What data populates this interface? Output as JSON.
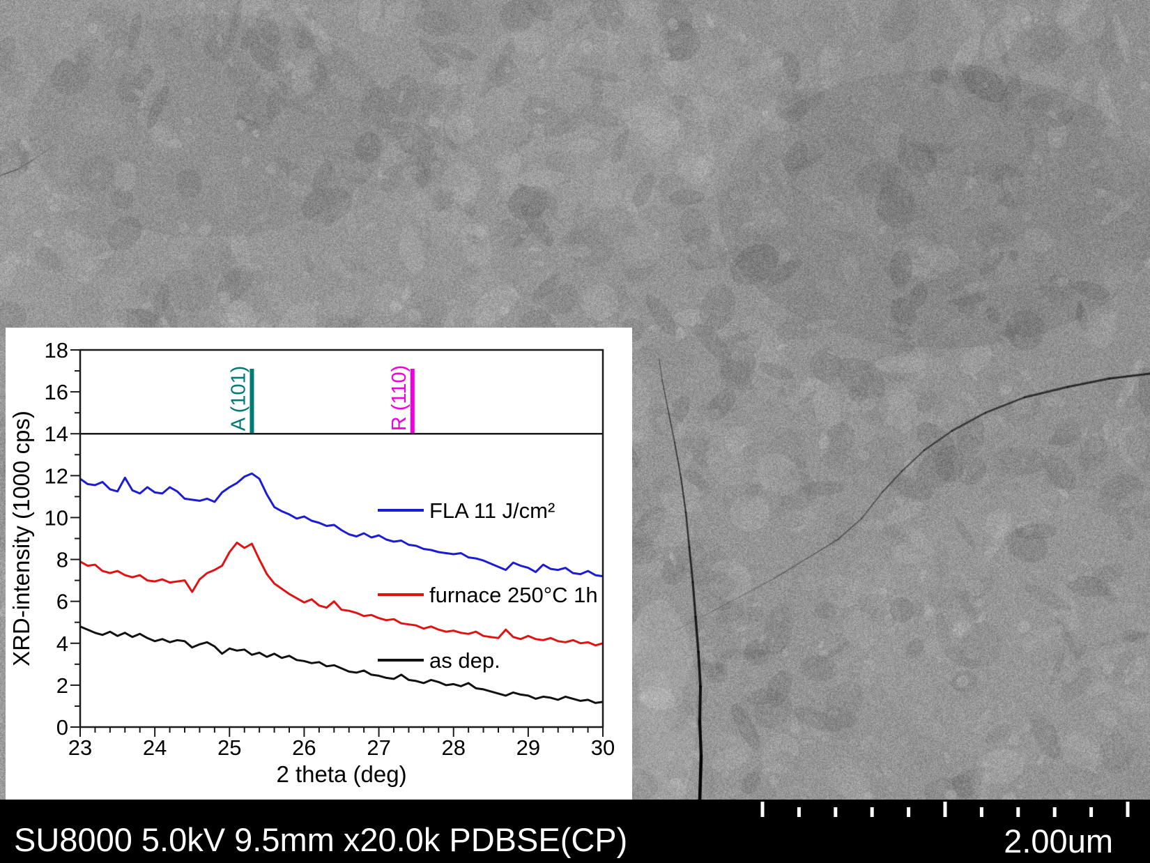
{
  "status_bar": {
    "settings_text": "SU8000 5.0kV 9.5mm x20.0k PDBSE(CP)",
    "scale_label": "2.00um"
  },
  "chart_data": {
    "type": "line",
    "title": "",
    "xlabel": "2 theta (deg)",
    "ylabel": "XRD-intensity (1000 cps)",
    "xlim": [
      23,
      30
    ],
    "ylim": [
      0,
      18
    ],
    "x_ticks": [
      23,
      24,
      25,
      26,
      27,
      28,
      29,
      30
    ],
    "y_ticks": [
      0,
      2,
      4,
      6,
      8,
      10,
      12,
      14,
      16,
      18
    ],
    "x_minor_step": 0.2,
    "y_minor_step": 1,
    "grid": false,
    "panel_split_y": 14,
    "legend_position": "right-middle",
    "reference_lines": [
      {
        "label": "A (101)",
        "x": 25.3,
        "color": "#007a74",
        "y_from": 14,
        "y_to": 17.1
      },
      {
        "label": "R (110)",
        "x": 27.45,
        "color": "#ee00dd",
        "y_from": 14,
        "y_to": 17.1
      }
    ],
    "x_start": 23.0,
    "x_step": 0.1,
    "series": [
      {
        "name": "FLA 11 J/cm²",
        "color": "#1c1cd6",
        "values": [
          11.85,
          11.6,
          11.55,
          11.7,
          11.35,
          11.25,
          11.9,
          11.3,
          11.15,
          11.45,
          11.2,
          11.15,
          11.45,
          11.25,
          10.9,
          10.85,
          10.8,
          10.9,
          10.75,
          11.2,
          11.45,
          11.65,
          11.95,
          12.1,
          11.85,
          11.1,
          10.5,
          10.3,
          10.15,
          9.95,
          10.05,
          9.85,
          9.75,
          9.6,
          9.65,
          9.4,
          9.2,
          9.1,
          9.25,
          9.05,
          9.15,
          8.95,
          8.85,
          8.9,
          8.7,
          8.65,
          8.5,
          8.45,
          8.35,
          8.3,
          8.25,
          8.3,
          8.1,
          8.05,
          7.95,
          7.8,
          7.65,
          7.5,
          7.85,
          7.7,
          7.6,
          7.4,
          7.75,
          7.55,
          7.5,
          7.6,
          7.35,
          7.3,
          7.45,
          7.25,
          7.2
        ]
      },
      {
        "name": "furnace 250°C 1h",
        "color": "#e11212",
        "values": [
          7.9,
          7.7,
          7.75,
          7.45,
          7.35,
          7.45,
          7.25,
          7.15,
          7.25,
          7.0,
          6.95,
          7.05,
          6.9,
          6.95,
          7.0,
          6.45,
          7.05,
          7.35,
          7.5,
          7.7,
          8.35,
          8.8,
          8.55,
          8.75,
          8.0,
          7.3,
          6.85,
          6.6,
          6.35,
          6.15,
          5.95,
          6.1,
          5.8,
          5.7,
          6.0,
          5.6,
          5.55,
          5.45,
          5.3,
          5.35,
          5.2,
          5.1,
          5.15,
          4.95,
          4.9,
          4.85,
          4.7,
          4.8,
          4.65,
          4.55,
          4.6,
          4.5,
          4.45,
          4.55,
          4.35,
          4.3,
          4.25,
          4.65,
          4.3,
          4.2,
          4.35,
          4.2,
          4.15,
          4.25,
          4.1,
          4.05,
          4.15,
          4.0,
          4.05,
          3.9,
          4.0
        ]
      },
      {
        "name": "as dep.",
        "color": "#111111",
        "values": [
          4.8,
          4.65,
          4.5,
          4.4,
          4.55,
          4.35,
          4.5,
          4.3,
          4.45,
          4.25,
          4.1,
          4.2,
          4.05,
          4.15,
          4.1,
          3.8,
          3.95,
          4.05,
          3.85,
          3.5,
          3.75,
          3.65,
          3.7,
          3.45,
          3.55,
          3.35,
          3.5,
          3.3,
          3.4,
          3.2,
          3.15,
          3.05,
          3.1,
          2.9,
          2.95,
          2.8,
          2.65,
          2.6,
          2.7,
          2.5,
          2.45,
          2.35,
          2.3,
          2.5,
          2.25,
          2.2,
          2.1,
          2.25,
          2.15,
          2.0,
          2.05,
          1.95,
          2.1,
          1.85,
          1.8,
          1.7,
          1.6,
          1.5,
          1.65,
          1.55,
          1.5,
          1.35,
          1.45,
          1.4,
          1.3,
          1.45,
          1.35,
          1.25,
          1.3,
          1.15,
          1.2
        ]
      }
    ]
  }
}
